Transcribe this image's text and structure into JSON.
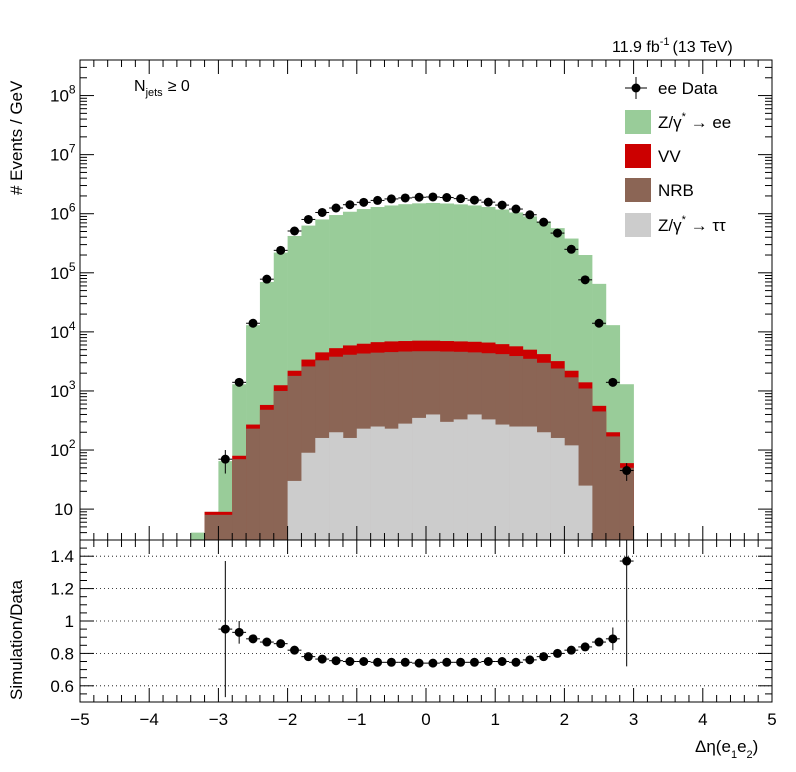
{
  "chart_data": [
    {
      "type": "bar",
      "panel": "top",
      "yscale": "log",
      "xlim": [
        -5,
        5
      ],
      "ylim": [
        3,
        400000000
      ],
      "ylabel": "# Events / GeV",
      "lumi_label": "11.9 fb",
      "lumi_sup": "-1",
      "lumi_energy": "(13 TeV)",
      "njets_main": "N",
      "njets_sub": "jets",
      "njets_cond": "≥ 0",
      "ytick_labels": [
        {
          "v": 10,
          "base": "10",
          "exp": ""
        },
        {
          "v": 100,
          "base": "10",
          "exp": "2"
        },
        {
          "v": 1000,
          "base": "10",
          "exp": "3"
        },
        {
          "v": 10000,
          "base": "10",
          "exp": "4"
        },
        {
          "v": 100000,
          "base": "10",
          "exp": "5"
        },
        {
          "v": 1000000,
          "base": "10",
          "exp": "6"
        },
        {
          "v": 10000000,
          "base": "10",
          "exp": "7"
        },
        {
          "v": 100000000,
          "base": "10",
          "exp": "8"
        }
      ],
      "bin_edges": [
        -3.4,
        -3.2,
        -3.0,
        -2.8,
        -2.6,
        -2.4,
        -2.2,
        -2.0,
        -1.8,
        -1.6,
        -1.4,
        -1.2,
        -1.0,
        -0.8,
        -0.6,
        -0.4,
        -0.2,
        0.0,
        0.2,
        0.4,
        0.6,
        0.8,
        1.0,
        1.2,
        1.4,
        1.6,
        1.8,
        2.0,
        2.2,
        2.4,
        2.6,
        2.8,
        3.0
      ],
      "legend": [
        {
          "key": "data",
          "label": "ee Data",
          "color": "#000000"
        },
        {
          "key": "zee",
          "label": "Z/γ",
          "sup": "*",
          "suffix": " → ee",
          "color": "#99cc99"
        },
        {
          "key": "vv",
          "label": "VV",
          "color": "#cc0000"
        },
        {
          "key": "nrb",
          "label": "NRB",
          "color": "#8b6555"
        },
        {
          "key": "ztt",
          "label": "Z/γ",
          "sup": "*",
          "suffix": " → ττ",
          "color": "#cccccc"
        }
      ],
      "series": [
        {
          "key": "ztt",
          "name": "Z/γ* → ττ",
          "color": "#cccccc",
          "cumulative_top": [
            0,
            0,
            0,
            0,
            0,
            0,
            0,
            30,
            90,
            160,
            200,
            160,
            230,
            250,
            230,
            280,
            350,
            400,
            300,
            330,
            400,
            330,
            270,
            250,
            250,
            200,
            160,
            120,
            25,
            0,
            0,
            0,
            0
          ]
        },
        {
          "key": "nrb",
          "name": "NRB",
          "color": "#8b6555",
          "cumulative_top": [
            0,
            8,
            8,
            70,
            230,
            480,
            1000,
            1800,
            2600,
            3300,
            3800,
            4100,
            4300,
            4450,
            4550,
            4650,
            4700,
            4700,
            4650,
            4600,
            4500,
            4350,
            4200,
            3900,
            3500,
            3000,
            2400,
            1700,
            1100,
            450,
            170,
            50,
            8
          ]
        },
        {
          "key": "vv",
          "name": "VV",
          "color": "#cc0000",
          "cumulative_top": [
            0,
            9,
            9,
            80,
            270,
            580,
            1250,
            2200,
            3400,
            4500,
            5300,
            5900,
            6300,
            6700,
            6900,
            7000,
            7100,
            7100,
            7000,
            6900,
            6800,
            6600,
            6200,
            5700,
            5000,
            4200,
            3200,
            2200,
            1400,
            560,
            200,
            60,
            9
          ]
        },
        {
          "key": "zee",
          "name": "Z/γ* → ee",
          "color": "#99cc99",
          "cumulative_top": [
            4,
            9,
            65,
            1300,
            13000,
            70000,
            220000,
            420000,
            630000,
            800000,
            950000,
            1080000,
            1200000,
            1300000,
            1380000,
            1450000,
            1500000,
            1520000,
            1490000,
            1440000,
            1380000,
            1300000,
            1180000,
            1050000,
            900000,
            740000,
            570000,
            380000,
            200000,
            65000,
            13000,
            1300,
            60
          ]
        }
      ],
      "data_points": {
        "x": [
          -2.9,
          -2.7,
          -2.5,
          -2.3,
          -2.1,
          -1.9,
          -1.7,
          -1.5,
          -1.3,
          -1.1,
          -0.9,
          -0.7,
          -0.5,
          -0.3,
          -0.1,
          0.1,
          0.3,
          0.5,
          0.7,
          0.9,
          1.1,
          1.3,
          1.5,
          1.7,
          1.9,
          2.1,
          2.3,
          2.5,
          2.7,
          2.9
        ],
        "y": [
          70,
          1400,
          14000,
          78000,
          240000,
          510000,
          800000,
          1050000,
          1250000,
          1420000,
          1560000,
          1680000,
          1780000,
          1850000,
          1900000,
          1920000,
          1880000,
          1800000,
          1700000,
          1570000,
          1400000,
          1200000,
          960000,
          720000,
          470000,
          250000,
          76000,
          14000,
          1400,
          45
        ],
        "yerr_low": [
          30,
          0,
          0,
          0,
          0,
          0,
          0,
          0,
          0,
          0,
          0,
          0,
          0,
          0,
          0,
          0,
          0,
          0,
          0,
          0,
          0,
          0,
          0,
          0,
          0,
          0,
          0,
          0,
          0,
          15
        ],
        "yerr_high": [
          30,
          0,
          0,
          0,
          0,
          0,
          0,
          0,
          0,
          0,
          0,
          0,
          0,
          0,
          0,
          0,
          0,
          0,
          0,
          0,
          0,
          0,
          0,
          0,
          0,
          0,
          0,
          0,
          0,
          15
        ]
      }
    },
    {
      "type": "scatter",
      "panel": "ratio",
      "xlim": [
        -5,
        5
      ],
      "ylim": [
        0.5,
        1.5
      ],
      "ylabel": "Simulation/Data",
      "xlabel_main": "Δη(e",
      "xlabel_sub1": "1",
      "xlabel_mid": "e",
      "xlabel_sub2": "2",
      "xlabel_end": ")",
      "x_ticks": [
        -5,
        -4,
        -3,
        -2,
        -1,
        0,
        1,
        2,
        3,
        4,
        5
      ],
      "x_tick_labels": [
        "−5",
        "−4",
        "−3",
        "−2",
        "−1",
        "0",
        "1",
        "2",
        "3",
        "4",
        "5"
      ],
      "y_ticks": [
        0.6,
        0.8,
        1,
        1.2,
        1.4
      ],
      "y_tick_labels": [
        "0.6",
        "0.8",
        "1",
        "1.2",
        "1.4"
      ],
      "grid_lines": [
        0.6,
        0.8,
        1.0,
        1.2,
        1.4
      ],
      "x": [
        -2.9,
        -2.7,
        -2.5,
        -2.3,
        -2.1,
        -1.9,
        -1.7,
        -1.5,
        -1.3,
        -1.1,
        -0.9,
        -0.7,
        -0.5,
        -0.3,
        -0.1,
        0.1,
        0.3,
        0.5,
        0.7,
        0.9,
        1.1,
        1.3,
        1.5,
        1.7,
        1.9,
        2.1,
        2.3,
        2.5,
        2.7,
        2.9
      ],
      "y": [
        0.95,
        0.93,
        0.89,
        0.87,
        0.86,
        0.82,
        0.78,
        0.765,
        0.755,
        0.75,
        0.75,
        0.745,
        0.745,
        0.745,
        0.74,
        0.74,
        0.745,
        0.745,
        0.745,
        0.75,
        0.75,
        0.745,
        0.76,
        0.78,
        0.8,
        0.82,
        0.84,
        0.87,
        0.89,
        0.88
      ],
      "yerr": [
        0.42,
        0.07,
        0.02,
        0.01,
        0.01,
        0.005,
        0.005,
        0.005,
        0.005,
        0.005,
        0.005,
        0.005,
        0.005,
        0.005,
        0.005,
        0.005,
        0.005,
        0.005,
        0.005,
        0.005,
        0.005,
        0.005,
        0.005,
        0.005,
        0.005,
        0.01,
        0.01,
        0.02,
        0.07,
        0.01
      ],
      "extra_point": {
        "x": 2.9,
        "y": 1.37,
        "err": 0.65
      }
    }
  ]
}
